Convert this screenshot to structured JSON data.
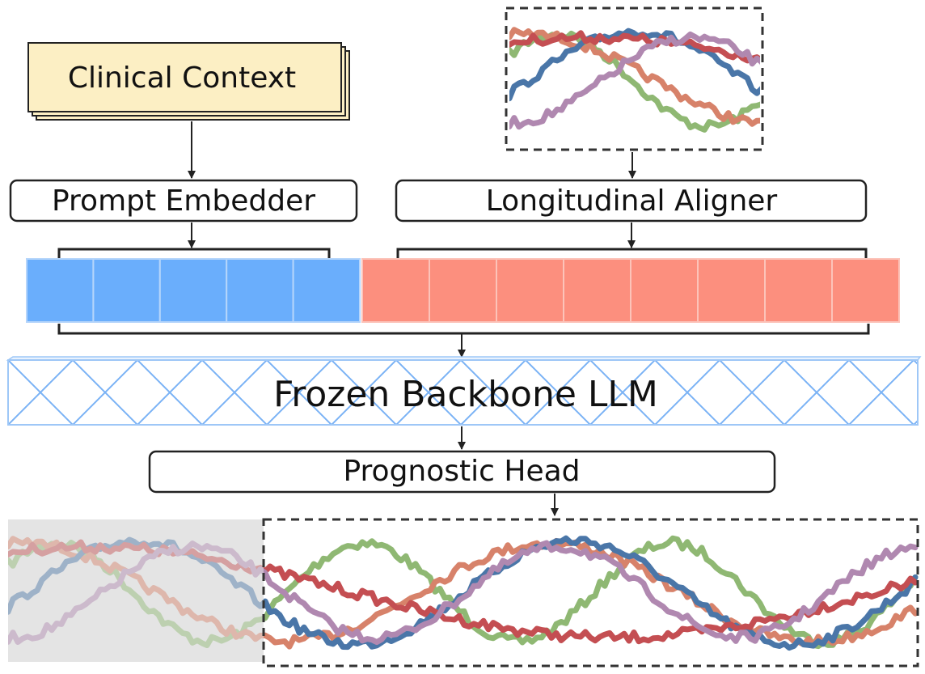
{
  "diagram": {
    "input_text": "Clinical Context",
    "prompt_embedder": "Prompt Embedder",
    "aligner": "Longitudinal Aligner",
    "backbone": "Frozen Backbone LLM",
    "head": "Prognostic Head"
  }
}
